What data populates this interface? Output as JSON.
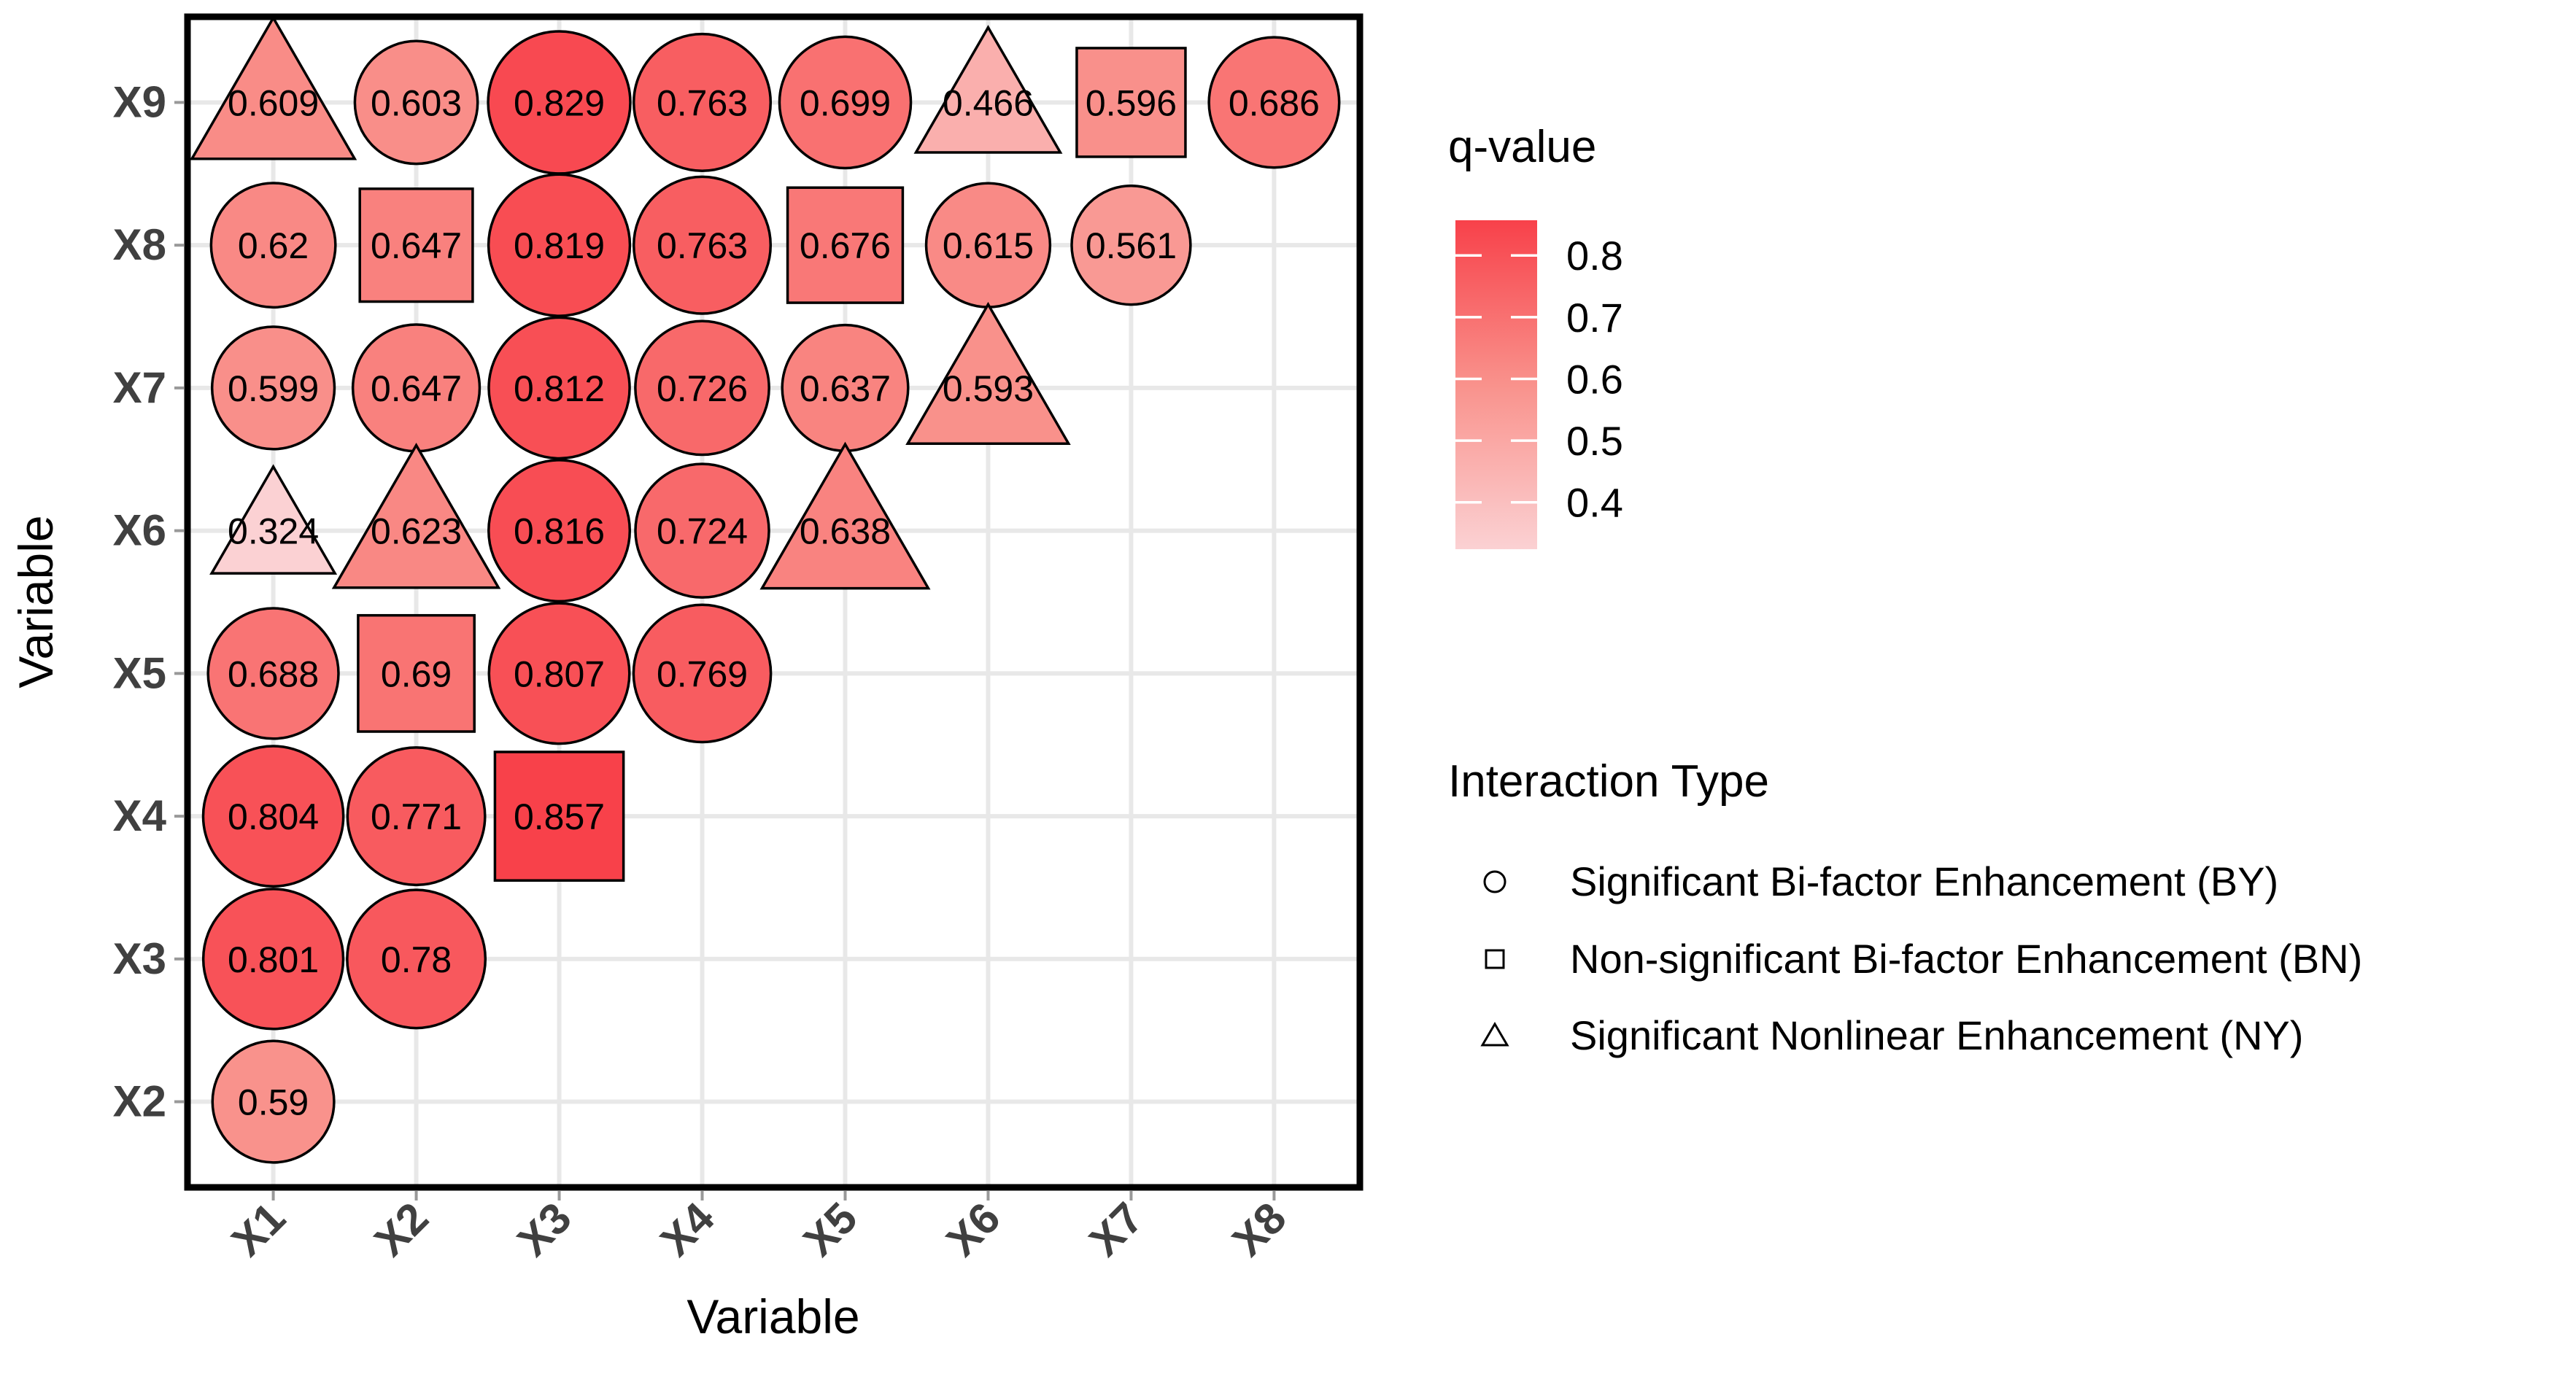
{
  "page": {
    "background": "#FFFFFF"
  },
  "chart_data": {
    "type": "scatter",
    "subtype": "pairwise-interaction-matrix",
    "xlabel": "Variable",
    "ylabel": "Variable",
    "x_categories": [
      "X1",
      "X2",
      "X3",
      "X4",
      "X5",
      "X6",
      "X7",
      "X8"
    ],
    "y_categories": [
      "X9",
      "X8",
      "X7",
      "X6",
      "X5",
      "X4",
      "X3",
      "X2"
    ],
    "grid": "major-only",
    "grid_color": "#E8E8E8",
    "panel_border_color": "#000000",
    "axis_tick_label_color": "#404040",
    "shape_for_type": {
      "BY": "circle",
      "BN": "square",
      "NY": "triangle"
    },
    "color_scale": {
      "stops": [
        {
          "value": 0.324,
          "color": "#FBD1D3"
        },
        {
          "value": 0.59,
          "color": "#F9928C"
        },
        {
          "value": 0.857,
          "color": "#F8414A"
        }
      ]
    },
    "size_scale": {
      "min_value": 0.324,
      "max_value": 0.857
    },
    "points": [
      {
        "x": "X1",
        "y": "X9",
        "q": 0.609,
        "label": "0.609",
        "type": "NY"
      },
      {
        "x": "X2",
        "y": "X9",
        "q": 0.603,
        "label": "0.603",
        "type": "BY"
      },
      {
        "x": "X3",
        "y": "X9",
        "q": 0.829,
        "label": "0.829",
        "type": "BY"
      },
      {
        "x": "X4",
        "y": "X9",
        "q": 0.763,
        "label": "0.763",
        "type": "BY"
      },
      {
        "x": "X5",
        "y": "X9",
        "q": 0.699,
        "label": "0.699",
        "type": "BY"
      },
      {
        "x": "X6",
        "y": "X9",
        "q": 0.466,
        "label": "0.466",
        "type": "NY"
      },
      {
        "x": "X7",
        "y": "X9",
        "q": 0.596,
        "label": "0.596",
        "type": "BN"
      },
      {
        "x": "X8",
        "y": "X9",
        "q": 0.686,
        "label": "0.686",
        "type": "BY"
      },
      {
        "x": "X1",
        "y": "X8",
        "q": 0.62,
        "label": "0.62",
        "type": "BY"
      },
      {
        "x": "X2",
        "y": "X8",
        "q": 0.647,
        "label": "0.647",
        "type": "BN"
      },
      {
        "x": "X3",
        "y": "X8",
        "q": 0.819,
        "label": "0.819",
        "type": "BY"
      },
      {
        "x": "X4",
        "y": "X8",
        "q": 0.763,
        "label": "0.763",
        "type": "BY"
      },
      {
        "x": "X5",
        "y": "X8",
        "q": 0.676,
        "label": "0.676",
        "type": "BN"
      },
      {
        "x": "X6",
        "y": "X8",
        "q": 0.615,
        "label": "0.615",
        "type": "BY"
      },
      {
        "x": "X7",
        "y": "X8",
        "q": 0.561,
        "label": "0.561",
        "type": "BY"
      },
      {
        "x": "X1",
        "y": "X7",
        "q": 0.599,
        "label": "0.599",
        "type": "BY"
      },
      {
        "x": "X2",
        "y": "X7",
        "q": 0.647,
        "label": "0.647",
        "type": "BY"
      },
      {
        "x": "X3",
        "y": "X7",
        "q": 0.812,
        "label": "0.812",
        "type": "BY"
      },
      {
        "x": "X4",
        "y": "X7",
        "q": 0.726,
        "label": "0.726",
        "type": "BY"
      },
      {
        "x": "X5",
        "y": "X7",
        "q": 0.637,
        "label": "0.637",
        "type": "BY"
      },
      {
        "x": "X6",
        "y": "X7",
        "q": 0.593,
        "label": "0.593",
        "type": "NY"
      },
      {
        "x": "X1",
        "y": "X6",
        "q": 0.324,
        "label": "0.324",
        "type": "NY"
      },
      {
        "x": "X2",
        "y": "X6",
        "q": 0.623,
        "label": "0.623",
        "type": "NY"
      },
      {
        "x": "X3",
        "y": "X6",
        "q": 0.816,
        "label": "0.816",
        "type": "BY"
      },
      {
        "x": "X4",
        "y": "X6",
        "q": 0.724,
        "label": "0.724",
        "type": "BY"
      },
      {
        "x": "X5",
        "y": "X6",
        "q": 0.638,
        "label": "0.638",
        "type": "NY"
      },
      {
        "x": "X1",
        "y": "X5",
        "q": 0.688,
        "label": "0.688",
        "type": "BY"
      },
      {
        "x": "X2",
        "y": "X5",
        "q": 0.69,
        "label": "0.69",
        "type": "BN"
      },
      {
        "x": "X3",
        "y": "X5",
        "q": 0.807,
        "label": "0.807",
        "type": "BY"
      },
      {
        "x": "X4",
        "y": "X5",
        "q": 0.769,
        "label": "0.769",
        "type": "BY"
      },
      {
        "x": "X1",
        "y": "X4",
        "q": 0.804,
        "label": "0.804",
        "type": "BY"
      },
      {
        "x": "X2",
        "y": "X4",
        "q": 0.771,
        "label": "0.771",
        "type": "BY"
      },
      {
        "x": "X3",
        "y": "X4",
        "q": 0.857,
        "label": "0.857",
        "type": "BN"
      },
      {
        "x": "X1",
        "y": "X3",
        "q": 0.801,
        "label": "0.801",
        "type": "BY"
      },
      {
        "x": "X2",
        "y": "X3",
        "q": 0.78,
        "label": "0.78",
        "type": "BY"
      },
      {
        "x": "X1",
        "y": "X2",
        "q": 0.59,
        "label": "0.59",
        "type": "BY"
      }
    ]
  },
  "legends": {
    "qvalue": {
      "title": "q-value",
      "ticks": [
        {
          "value": 0.8,
          "label": "0.8"
        },
        {
          "value": 0.7,
          "label": "0.7"
        },
        {
          "value": 0.6,
          "label": "0.6"
        },
        {
          "value": 0.5,
          "label": "0.5"
        },
        {
          "value": 0.4,
          "label": "0.4"
        }
      ]
    },
    "interaction": {
      "title": "Interaction Type",
      "items": [
        {
          "type": "BY",
          "shape": "circle",
          "label": "Significant Bi-factor Enhancement (BY)"
        },
        {
          "type": "BN",
          "shape": "square",
          "label": "Non-significant Bi-factor Enhancement (BN)"
        },
        {
          "type": "NY",
          "shape": "triangle",
          "label": "Significant Nonlinear Enhancement (NY)"
        }
      ]
    }
  }
}
